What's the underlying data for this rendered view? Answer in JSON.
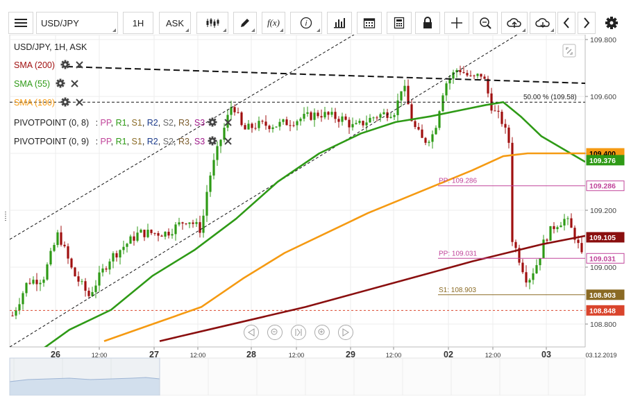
{
  "toolbar": {
    "symbol": "USD/JPY",
    "timeframe": "1H",
    "price_type": "ASK",
    "icons": [
      "menu-icon",
      "candlestick-type-icon",
      "draw-pencil-icon",
      "function-icon",
      "info-icon",
      "bar-chart-icon",
      "calendar-icon",
      "calculator-icon",
      "lock-icon",
      "crosshair-icon",
      "zoom-icon",
      "cloud-upload-icon",
      "cloud-download-icon",
      "chevron-left-icon",
      "chevron-right-icon",
      "gear-icon"
    ]
  },
  "chart": {
    "header": "USD/JPY, 1H, ASK",
    "indicators": [
      {
        "label": "SMA (200)",
        "color": "#a01010"
      },
      {
        "label": "SMA (55)",
        "color": "#2e9a16"
      },
      {
        "label": "SMA (100)",
        "color": "#f59a12"
      }
    ],
    "pivots": [
      {
        "label": "PIVOTPOINT (0, 8)",
        "sep": ":",
        "items": [
          "PP",
          "R1",
          "S1",
          "R2",
          "S2",
          "R3",
          "S3"
        ]
      },
      {
        "label": "PIVOTPOINT (0, 9)",
        "sep": ":",
        "items": [
          "PP",
          "R1",
          "S1",
          "R2",
          "S2",
          "R3",
          "S3"
        ]
      }
    ],
    "pivot_colors": {
      "PP": "#c0449a",
      "R1": "#2e9a16",
      "S1": "#8a6a24",
      "R2": "#1b3a8a",
      "S2": "#6b6b6b",
      "R3": "#7a5a2a",
      "S3": "#a01a8a"
    },
    "fib_label": "50.00 % (109.58)",
    "annotations": [
      {
        "text": "PP: 109.286",
        "price": 109.286,
        "color": "#c0449a"
      },
      {
        "text": "PP: 109.031",
        "price": 109.031,
        "color": "#c0449a"
      },
      {
        "text": "S1: 108.903",
        "price": 108.903,
        "color": "#8a6a24"
      }
    ],
    "price_axis": [
      "109.800",
      "109.600",
      "109.400",
      "109.200",
      "109.000",
      "108.800"
    ],
    "price_tags": [
      {
        "text": "109.400",
        "bg": "#f59a12",
        "fg": "#000"
      },
      {
        "text": "109.376",
        "bg": "#2e9a16",
        "fg": "#fff"
      },
      {
        "text": "109.286",
        "bg": "#ffffff",
        "fg": "#c0449a"
      },
      {
        "text": "109.105",
        "bg": "#8a0f0f",
        "fg": "#fff"
      },
      {
        "text": "109.031",
        "bg": "#ffffff",
        "fg": "#c0449a"
      },
      {
        "text": "108.903",
        "bg": "#8a6a24",
        "fg": "#fff"
      },
      {
        "text": "108.848",
        "bg": "#d9442c",
        "fg": "#fff"
      }
    ],
    "time_axis": [
      "26",
      "12:00",
      "27",
      "12:00",
      "28",
      "12:00",
      "29",
      "12:00",
      "02",
      "12:00",
      "03",
      "03.12.2019"
    ],
    "nav_icons": [
      "prev-icon",
      "zoom-out-icon",
      "reset-icon",
      "zoom-in-icon",
      "next-icon"
    ],
    "colors": {
      "up": "#2e9a16",
      "down": "#a01010",
      "sma200": "#8a0f0f",
      "sma55": "#2e9a16",
      "sma100": "#f59a12"
    }
  }
}
